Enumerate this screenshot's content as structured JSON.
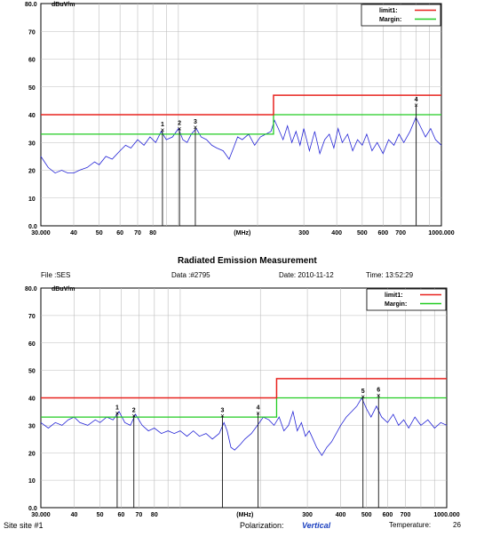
{
  "colors": {
    "limit": "#e8231f",
    "margin": "#22cc22",
    "trace": "#2424d6",
    "grid": "#bdbdbd",
    "marker": "#111111"
  },
  "chart_data": [
    {
      "type": "line",
      "title": "",
      "xscale": "log",
      "xlim": [
        30,
        1000
      ],
      "ylim": [
        0,
        80
      ],
      "grid": true,
      "legend_position": "top-right",
      "y_top_label": "80.0",
      "y_unit": "dBuV/m",
      "x_unit": "(MHz)",
      "x_ticks": [
        {
          "v": 30,
          "label": "30.000"
        },
        {
          "v": 40,
          "label": "40"
        },
        {
          "v": 50,
          "label": "50"
        },
        {
          "v": 60,
          "label": "60"
        },
        {
          "v": 70,
          "label": "70"
        },
        {
          "v": 80,
          "label": "80"
        },
        {
          "v": 300,
          "label": "300"
        },
        {
          "v": 400,
          "label": "400"
        },
        {
          "v": 500,
          "label": "500"
        },
        {
          "v": 600,
          "label": "600"
        },
        {
          "v": 700,
          "label": "700"
        },
        {
          "v": 1000,
          "label": "1000.000"
        }
      ],
      "y_ticks": [
        {
          "v": 70,
          "label": "70"
        },
        {
          "v": 60,
          "label": "60"
        },
        {
          "v": 50,
          "label": "50"
        },
        {
          "v": 40,
          "label": "40"
        },
        {
          "v": 30,
          "label": "30"
        },
        {
          "v": 20,
          "label": "20"
        },
        {
          "v": 10,
          "label": "10"
        },
        {
          "v": 0,
          "label": "0.0"
        }
      ],
      "legend": [
        {
          "label": "limit1:",
          "color": "limit"
        },
        {
          "label": "Margin:",
          "color": "margin"
        }
      ],
      "limit_line": [
        [
          30,
          40
        ],
        [
          230,
          40
        ],
        [
          230,
          47
        ],
        [
          1000,
          47
        ]
      ],
      "margin_line": [
        [
          30,
          33
        ],
        [
          230,
          33
        ],
        [
          230,
          40
        ],
        [
          1000,
          40
        ]
      ],
      "trace": [
        [
          30,
          25
        ],
        [
          32,
          21
        ],
        [
          34,
          19
        ],
        [
          36,
          20
        ],
        [
          38,
          19
        ],
        [
          40,
          19
        ],
        [
          42,
          20
        ],
        [
          45,
          21
        ],
        [
          48,
          23
        ],
        [
          50,
          22
        ],
        [
          53,
          25
        ],
        [
          56,
          24
        ],
        [
          60,
          27
        ],
        [
          63,
          29
        ],
        [
          66,
          28
        ],
        [
          70,
          31
        ],
        [
          74,
          29
        ],
        [
          78,
          32
        ],
        [
          82,
          30
        ],
        [
          86,
          34
        ],
        [
          90,
          31
        ],
        [
          95,
          32
        ],
        [
          100,
          35
        ],
        [
          104,
          31
        ],
        [
          108,
          30
        ],
        [
          112,
          33
        ],
        [
          117,
          35
        ],
        [
          122,
          32
        ],
        [
          128,
          31
        ],
        [
          134,
          29
        ],
        [
          140,
          28
        ],
        [
          148,
          27
        ],
        [
          156,
          24
        ],
        [
          162,
          28
        ],
        [
          168,
          32
        ],
        [
          175,
          31
        ],
        [
          185,
          33
        ],
        [
          195,
          29
        ],
        [
          205,
          32
        ],
        [
          215,
          33
        ],
        [
          225,
          34
        ],
        [
          232,
          38
        ],
        [
          240,
          35
        ],
        [
          250,
          31
        ],
        [
          260,
          36
        ],
        [
          270,
          30
        ],
        [
          280,
          34
        ],
        [
          290,
          29
        ],
        [
          300,
          35
        ],
        [
          315,
          27
        ],
        [
          330,
          34
        ],
        [
          345,
          26
        ],
        [
          360,
          31
        ],
        [
          375,
          33
        ],
        [
          390,
          28
        ],
        [
          405,
          35
        ],
        [
          420,
          30
        ],
        [
          440,
          33
        ],
        [
          460,
          27
        ],
        [
          480,
          31
        ],
        [
          500,
          29
        ],
        [
          520,
          33
        ],
        [
          545,
          27
        ],
        [
          570,
          30
        ],
        [
          600,
          26
        ],
        [
          630,
          31
        ],
        [
          660,
          29
        ],
        [
          690,
          33
        ],
        [
          720,
          30
        ],
        [
          760,
          34
        ],
        [
          800,
          39
        ],
        [
          830,
          36
        ],
        [
          870,
          32
        ],
        [
          910,
          35
        ],
        [
          950,
          31
        ],
        [
          1000,
          29
        ]
      ],
      "markers": [
        {
          "label": "1",
          "x": 87,
          "y": 34.5
        },
        {
          "label": "2",
          "x": 101,
          "y": 35
        },
        {
          "label": "3",
          "x": 116,
          "y": 35.5
        },
        {
          "label": "4",
          "x": 802,
          "y": 43.5
        }
      ]
    },
    {
      "type": "line",
      "title": "Radiated Emission Measurement",
      "xscale": "log",
      "xlim": [
        30,
        1000
      ],
      "ylim": [
        0,
        80
      ],
      "grid": true,
      "legend_position": "top-right",
      "y_top_label": "80.0",
      "y_unit": "dBuV/m",
      "x_unit": "(MHz)",
      "x_ticks": [
        {
          "v": 30,
          "label": "30.000"
        },
        {
          "v": 40,
          "label": "40"
        },
        {
          "v": 50,
          "label": "50"
        },
        {
          "v": 60,
          "label": "60"
        },
        {
          "v": 70,
          "label": "70"
        },
        {
          "v": 80,
          "label": "80"
        },
        {
          "v": 300,
          "label": "300"
        },
        {
          "v": 400,
          "label": "400"
        },
        {
          "v": 500,
          "label": "500"
        },
        {
          "v": 600,
          "label": "600"
        },
        {
          "v": 700,
          "label": "700"
        },
        {
          "v": 1000,
          "label": "1000.000"
        }
      ],
      "y_ticks": [
        {
          "v": 70,
          "label": "70"
        },
        {
          "v": 60,
          "label": "60"
        },
        {
          "v": 50,
          "label": "50"
        },
        {
          "v": 40,
          "label": "40"
        },
        {
          "v": 30,
          "label": "30"
        },
        {
          "v": 20,
          "label": "20"
        },
        {
          "v": 10,
          "label": "10"
        },
        {
          "v": 0,
          "label": "0.0"
        }
      ],
      "legend": [
        {
          "label": "limit1:",
          "color": "limit"
        },
        {
          "label": "Margin:",
          "color": "margin"
        }
      ],
      "limit_line": [
        [
          30,
          40
        ],
        [
          230,
          40
        ],
        [
          230,
          47
        ],
        [
          1000,
          47
        ]
      ],
      "margin_line": [
        [
          30,
          33
        ],
        [
          230,
          33
        ],
        [
          230,
          40
        ],
        [
          1000,
          40
        ]
      ],
      "trace": [
        [
          30,
          31
        ],
        [
          32,
          29
        ],
        [
          34,
          31
        ],
        [
          36,
          30
        ],
        [
          38,
          32
        ],
        [
          40,
          33
        ],
        [
          42,
          31
        ],
        [
          45,
          30
        ],
        [
          48,
          32
        ],
        [
          50,
          31
        ],
        [
          53,
          33
        ],
        [
          56,
          32
        ],
        [
          59,
          35
        ],
        [
          62,
          31
        ],
        [
          65,
          30
        ],
        [
          68,
          34
        ],
        [
          72,
          30
        ],
        [
          76,
          28
        ],
        [
          80,
          29
        ],
        [
          85,
          27
        ],
        [
          90,
          28
        ],
        [
          95,
          27
        ],
        [
          100,
          28
        ],
        [
          106,
          26
        ],
        [
          112,
          28
        ],
        [
          118,
          26
        ],
        [
          125,
          27
        ],
        [
          132,
          25
        ],
        [
          140,
          27
        ],
        [
          146,
          31
        ],
        [
          150,
          28
        ],
        [
          155,
          22
        ],
        [
          160,
          21
        ],
        [
          168,
          23
        ],
        [
          175,
          25
        ],
        [
          185,
          27
        ],
        [
          195,
          30
        ],
        [
          205,
          33
        ],
        [
          215,
          32
        ],
        [
          225,
          30
        ],
        [
          235,
          33
        ],
        [
          245,
          28
        ],
        [
          255,
          30
        ],
        [
          265,
          35
        ],
        [
          275,
          28
        ],
        [
          285,
          31
        ],
        [
          295,
          26
        ],
        [
          305,
          28
        ],
        [
          315,
          25
        ],
        [
          325,
          22
        ],
        [
          340,
          19
        ],
        [
          355,
          22
        ],
        [
          370,
          24
        ],
        [
          385,
          27
        ],
        [
          400,
          30
        ],
        [
          420,
          33
        ],
        [
          440,
          35
        ],
        [
          460,
          37
        ],
        [
          480,
          40
        ],
        [
          500,
          36
        ],
        [
          520,
          33
        ],
        [
          545,
          37
        ],
        [
          570,
          33
        ],
        [
          600,
          31
        ],
        [
          630,
          34
        ],
        [
          660,
          30
        ],
        [
          690,
          32
        ],
        [
          720,
          29
        ],
        [
          760,
          33
        ],
        [
          800,
          30
        ],
        [
          850,
          32
        ],
        [
          900,
          29
        ],
        [
          950,
          31
        ],
        [
          1000,
          30
        ]
      ],
      "markers": [
        {
          "label": "1",
          "x": 58,
          "y": 34.5
        },
        {
          "label": "2",
          "x": 67,
          "y": 33.5
        },
        {
          "label": "3",
          "x": 144,
          "y": 33.5
        },
        {
          "label": "4",
          "x": 196,
          "y": 34.5
        },
        {
          "label": "5",
          "x": 485,
          "y": 40.5
        },
        {
          "label": "6",
          "x": 555,
          "y": 41
        }
      ]
    }
  ],
  "header": {
    "file": "File :SES",
    "data": "Data :#2795",
    "date": "Date: 2010-11-12",
    "time": "Time: 13:52:29"
  },
  "footer": {
    "site": "Site  site #1",
    "polarization_label": "Polarization:",
    "polarization_value": "Vertical",
    "temperature_label": "Temperature:",
    "temperature_value": "26"
  }
}
